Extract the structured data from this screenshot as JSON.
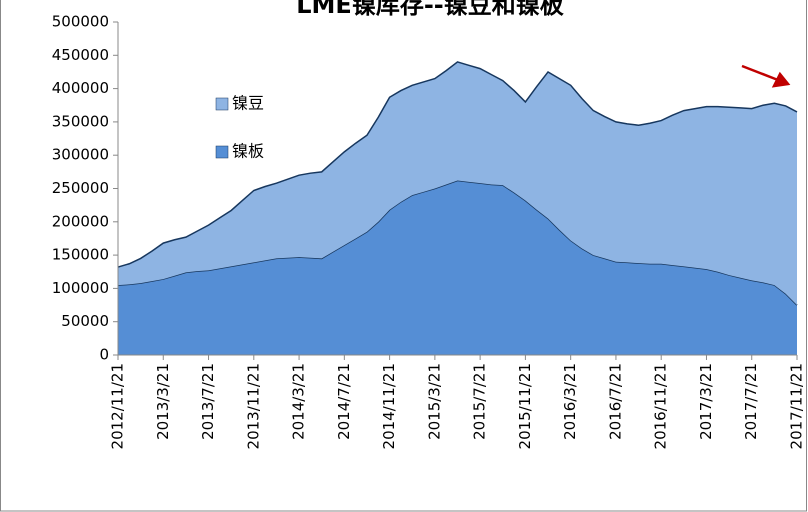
{
  "chart_data": {
    "type": "stacked_area",
    "title": "LME镍库存--镍豆和镍板",
    "categories": [
      "2012/11/21",
      null,
      null,
      null,
      "2013/3/21",
      null,
      null,
      null,
      "2013/7/21",
      null,
      null,
      null,
      "2013/11/21",
      null,
      null,
      null,
      "2014/3/21",
      null,
      null,
      null,
      "2014/7/21",
      null,
      null,
      null,
      "2014/11/21",
      null,
      null,
      null,
      "2015/3/21",
      null,
      null,
      null,
      "2015/7/21",
      null,
      null,
      null,
      "2015/11/21",
      null,
      null,
      null,
      "2016/3/21",
      null,
      null,
      null,
      "2016/7/21",
      null,
      null,
      null,
      "2016/11/21",
      null,
      null,
      null,
      "2017/3/21",
      null,
      null,
      null,
      "2017/7/21",
      null,
      null,
      null,
      "2017/11/21"
    ],
    "series": [
      {
        "name": "镍板",
        "color": "#558ed5",
        "values": [
          105000,
          106000,
          108000,
          111000,
          114000,
          119000,
          124000,
          126000,
          127000,
          130000,
          133000,
          136000,
          139000,
          142000,
          145000,
          146000,
          147000,
          146000,
          145000,
          155000,
          165000,
          175000,
          185000,
          200000,
          218000,
          230000,
          240000,
          245000,
          250000,
          256000,
          262000,
          260000,
          258000,
          256000,
          255000,
          244000,
          232000,
          218000,
          205000,
          188000,
          172000,
          160000,
          150000,
          145000,
          140000,
          139000,
          138000,
          137000,
          137000,
          135000,
          133000,
          131000,
          129000,
          125000,
          120000,
          116000,
          112000,
          109000,
          105000,
          92000,
          75000
        ]
      },
      {
        "name": "镍豆",
        "color": "#8eb4e3",
        "values": [
          27000,
          31000,
          37000,
          45000,
          54000,
          54000,
          53000,
          60000,
          68000,
          76000,
          84000,
          96000,
          108000,
          111000,
          113000,
          118000,
          123000,
          127000,
          130000,
          135000,
          140000,
          143000,
          145000,
          157000,
          169000,
          167000,
          165000,
          165000,
          165000,
          171000,
          178000,
          175000,
          172000,
          165000,
          157000,
          153000,
          148000,
          185000,
          220000,
          227000,
          233000,
          225000,
          217000,
          213000,
          210000,
          208000,
          207000,
          211000,
          215000,
          225000,
          234000,
          239000,
          244000,
          248000,
          252000,
          255000,
          258000,
          266000,
          273000,
          282000,
          290000
        ]
      }
    ],
    "ylim": [
      0,
      500000
    ],
    "yticks": [
      0,
      50000,
      100000,
      150000,
      200000,
      250000,
      300000,
      350000,
      400000,
      450000,
      500000
    ]
  }
}
